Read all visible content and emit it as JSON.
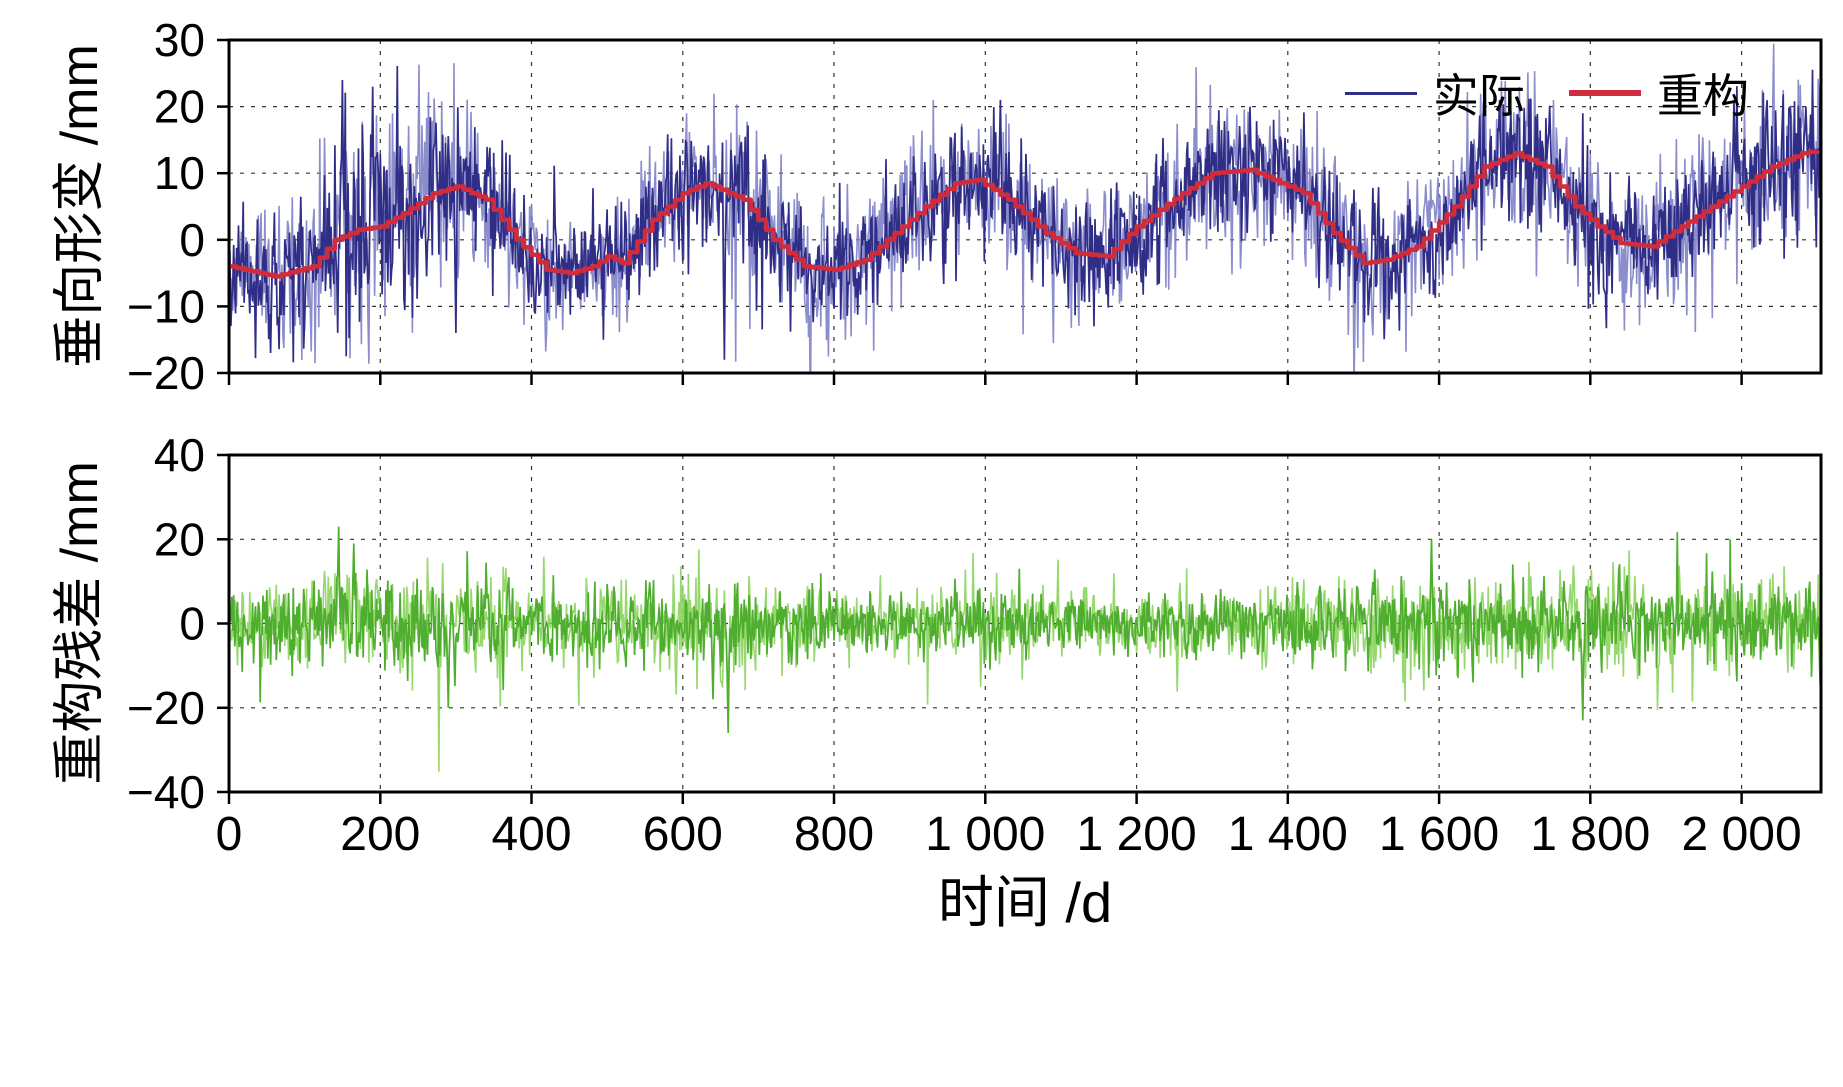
{
  "figure": {
    "background": "#ffffff",
    "x_axis_title": "时间 /d"
  },
  "legend": {
    "items": [
      {
        "label": "实际",
        "color": "#2f2d85"
      },
      {
        "label": "重构",
        "color": "#d02c3c"
      }
    ]
  },
  "chart_data": [
    {
      "type": "line",
      "panel": "top",
      "title": "",
      "xlabel": "时间 /d",
      "ylabel": "垂向形变 /mm",
      "xlim": [
        0,
        2105
      ],
      "ylim": [
        -20,
        30
      ],
      "xticks": [
        0,
        200,
        400,
        600,
        800,
        1000,
        1200,
        1400,
        1600,
        1800,
        2000
      ],
      "xtick_labels": [
        "0",
        "200",
        "400",
        "600",
        "800",
        "1 000",
        "1 200",
        "1 400",
        "1 600",
        "1 800",
        "2 000"
      ],
      "show_xtick_labels": false,
      "yticks": [
        30,
        20,
        10,
        0,
        -10,
        -20
      ],
      "ytick_labels": [
        "30",
        "20",
        "10",
        "0",
        "−10",
        "−20"
      ],
      "grid": true,
      "legend_position": "top-right",
      "series": [
        {
          "name": "实际",
          "type": "noisy",
          "color": "#2f2d85",
          "underlay_color": "#7e81c8",
          "baseline": "recon",
          "seed": 11,
          "noise_sd_keypoints": [
            [
              0,
              4
            ],
            [
              80,
              5
            ],
            [
              160,
              7
            ],
            [
              250,
              6.5
            ],
            [
              350,
              5
            ],
            [
              430,
              3.5
            ],
            [
              520,
              3.5
            ],
            [
              600,
              5
            ],
            [
              650,
              6
            ],
            [
              800,
              4
            ],
            [
              900,
              4.5
            ],
            [
              1000,
              5
            ],
            [
              1100,
              4
            ],
            [
              1200,
              4.5
            ],
            [
              1350,
              5
            ],
            [
              1500,
              4.5
            ],
            [
              1600,
              5
            ],
            [
              1700,
              5
            ],
            [
              1800,
              4.5
            ],
            [
              1900,
              4.5
            ],
            [
              2000,
              5.5
            ],
            [
              2105,
              6
            ]
          ],
          "spikes": [
            [
              55,
              -17
            ],
            [
              150,
              24
            ],
            [
              190,
              23
            ],
            [
              300,
              -14
            ],
            [
              655,
              -18
            ],
            [
              1020,
              21
            ],
            [
              1350,
              20
            ],
            [
              1680,
              21
            ],
            [
              1990,
              21
            ],
            [
              2085,
              20
            ]
          ]
        },
        {
          "name": "重构",
          "type": "step",
          "color": "#d02c3c",
          "keypoints": [
            [
              0,
              -4
            ],
            [
              60,
              -5.5
            ],
            [
              110,
              -4
            ],
            [
              140,
              0
            ],
            [
              170,
              1.5
            ],
            [
              200,
              2
            ],
            [
              230,
              4
            ],
            [
              270,
              7
            ],
            [
              300,
              8
            ],
            [
              340,
              6
            ],
            [
              380,
              0
            ],
            [
              420,
              -4.5
            ],
            [
              450,
              -5
            ],
            [
              480,
              -4
            ],
            [
              500,
              -2.5
            ],
            [
              520,
              -3.5
            ],
            [
              560,
              3
            ],
            [
              600,
              7
            ],
            [
              630,
              8.5
            ],
            [
              680,
              6
            ],
            [
              720,
              0
            ],
            [
              760,
              -4
            ],
            [
              800,
              -4.5
            ],
            [
              840,
              -3
            ],
            [
              880,
              1
            ],
            [
              920,
              5
            ],
            [
              960,
              8.5
            ],
            [
              990,
              9
            ],
            [
              1030,
              6
            ],
            [
              1080,
              1
            ],
            [
              1120,
              -2
            ],
            [
              1160,
              -2.5
            ],
            [
              1200,
              2
            ],
            [
              1260,
              7
            ],
            [
              1300,
              10
            ],
            [
              1350,
              10.5
            ],
            [
              1420,
              7
            ],
            [
              1460,
              1
            ],
            [
              1500,
              -3.5
            ],
            [
              1530,
              -3
            ],
            [
              1570,
              -1
            ],
            [
              1620,
              5
            ],
            [
              1660,
              11
            ],
            [
              1700,
              13
            ],
            [
              1740,
              11
            ],
            [
              1780,
              5
            ],
            [
              1810,
              2
            ],
            [
              1840,
              -0.5
            ],
            [
              1880,
              -1
            ],
            [
              1920,
              2
            ],
            [
              1960,
              5
            ],
            [
              2000,
              8
            ],
            [
              2040,
              11
            ],
            [
              2080,
              13
            ],
            [
              2105,
              13.5
            ]
          ]
        }
      ]
    },
    {
      "type": "line",
      "panel": "bottom",
      "title": "",
      "xlabel": "时间 /d",
      "ylabel": "重构残差 /mm",
      "xlim": [
        0,
        2105
      ],
      "ylim": [
        -40,
        40
      ],
      "xticks": [
        0,
        200,
        400,
        600,
        800,
        1000,
        1200,
        1400,
        1600,
        1800,
        2000
      ],
      "xtick_labels": [
        "0",
        "200",
        "400",
        "600",
        "800",
        "1 000",
        "1 200",
        "1 400",
        "1 600",
        "1 800",
        "2 000"
      ],
      "show_xtick_labels": true,
      "yticks": [
        40,
        20,
        0,
        -20,
        -40
      ],
      "ytick_labels": [
        "40",
        "20",
        "0",
        "−20",
        "−40"
      ],
      "grid": true,
      "series": [
        {
          "name": "重构残差",
          "type": "noisy",
          "color": "#4fae2f",
          "underlay_color": "#8bd45e",
          "baseline": "zero",
          "seed": 77,
          "noise_sd_keypoints": [
            [
              0,
              4
            ],
            [
              150,
              6
            ],
            [
              300,
              5
            ],
            [
              500,
              4
            ],
            [
              650,
              5.5
            ],
            [
              800,
              3.5
            ],
            [
              1000,
              4
            ],
            [
              1200,
              3.5
            ],
            [
              1400,
              4
            ],
            [
              1600,
              5
            ],
            [
              1800,
              5
            ],
            [
              2000,
              5
            ],
            [
              2105,
              4.5
            ]
          ],
          "spikes": [
            [
              145,
              23
            ],
            [
              165,
              19
            ],
            [
              290,
              -20
            ],
            [
              640,
              -18
            ],
            [
              660,
              -26
            ],
            [
              1590,
              20
            ],
            [
              1790,
              -23
            ]
          ]
        }
      ]
    }
  ]
}
